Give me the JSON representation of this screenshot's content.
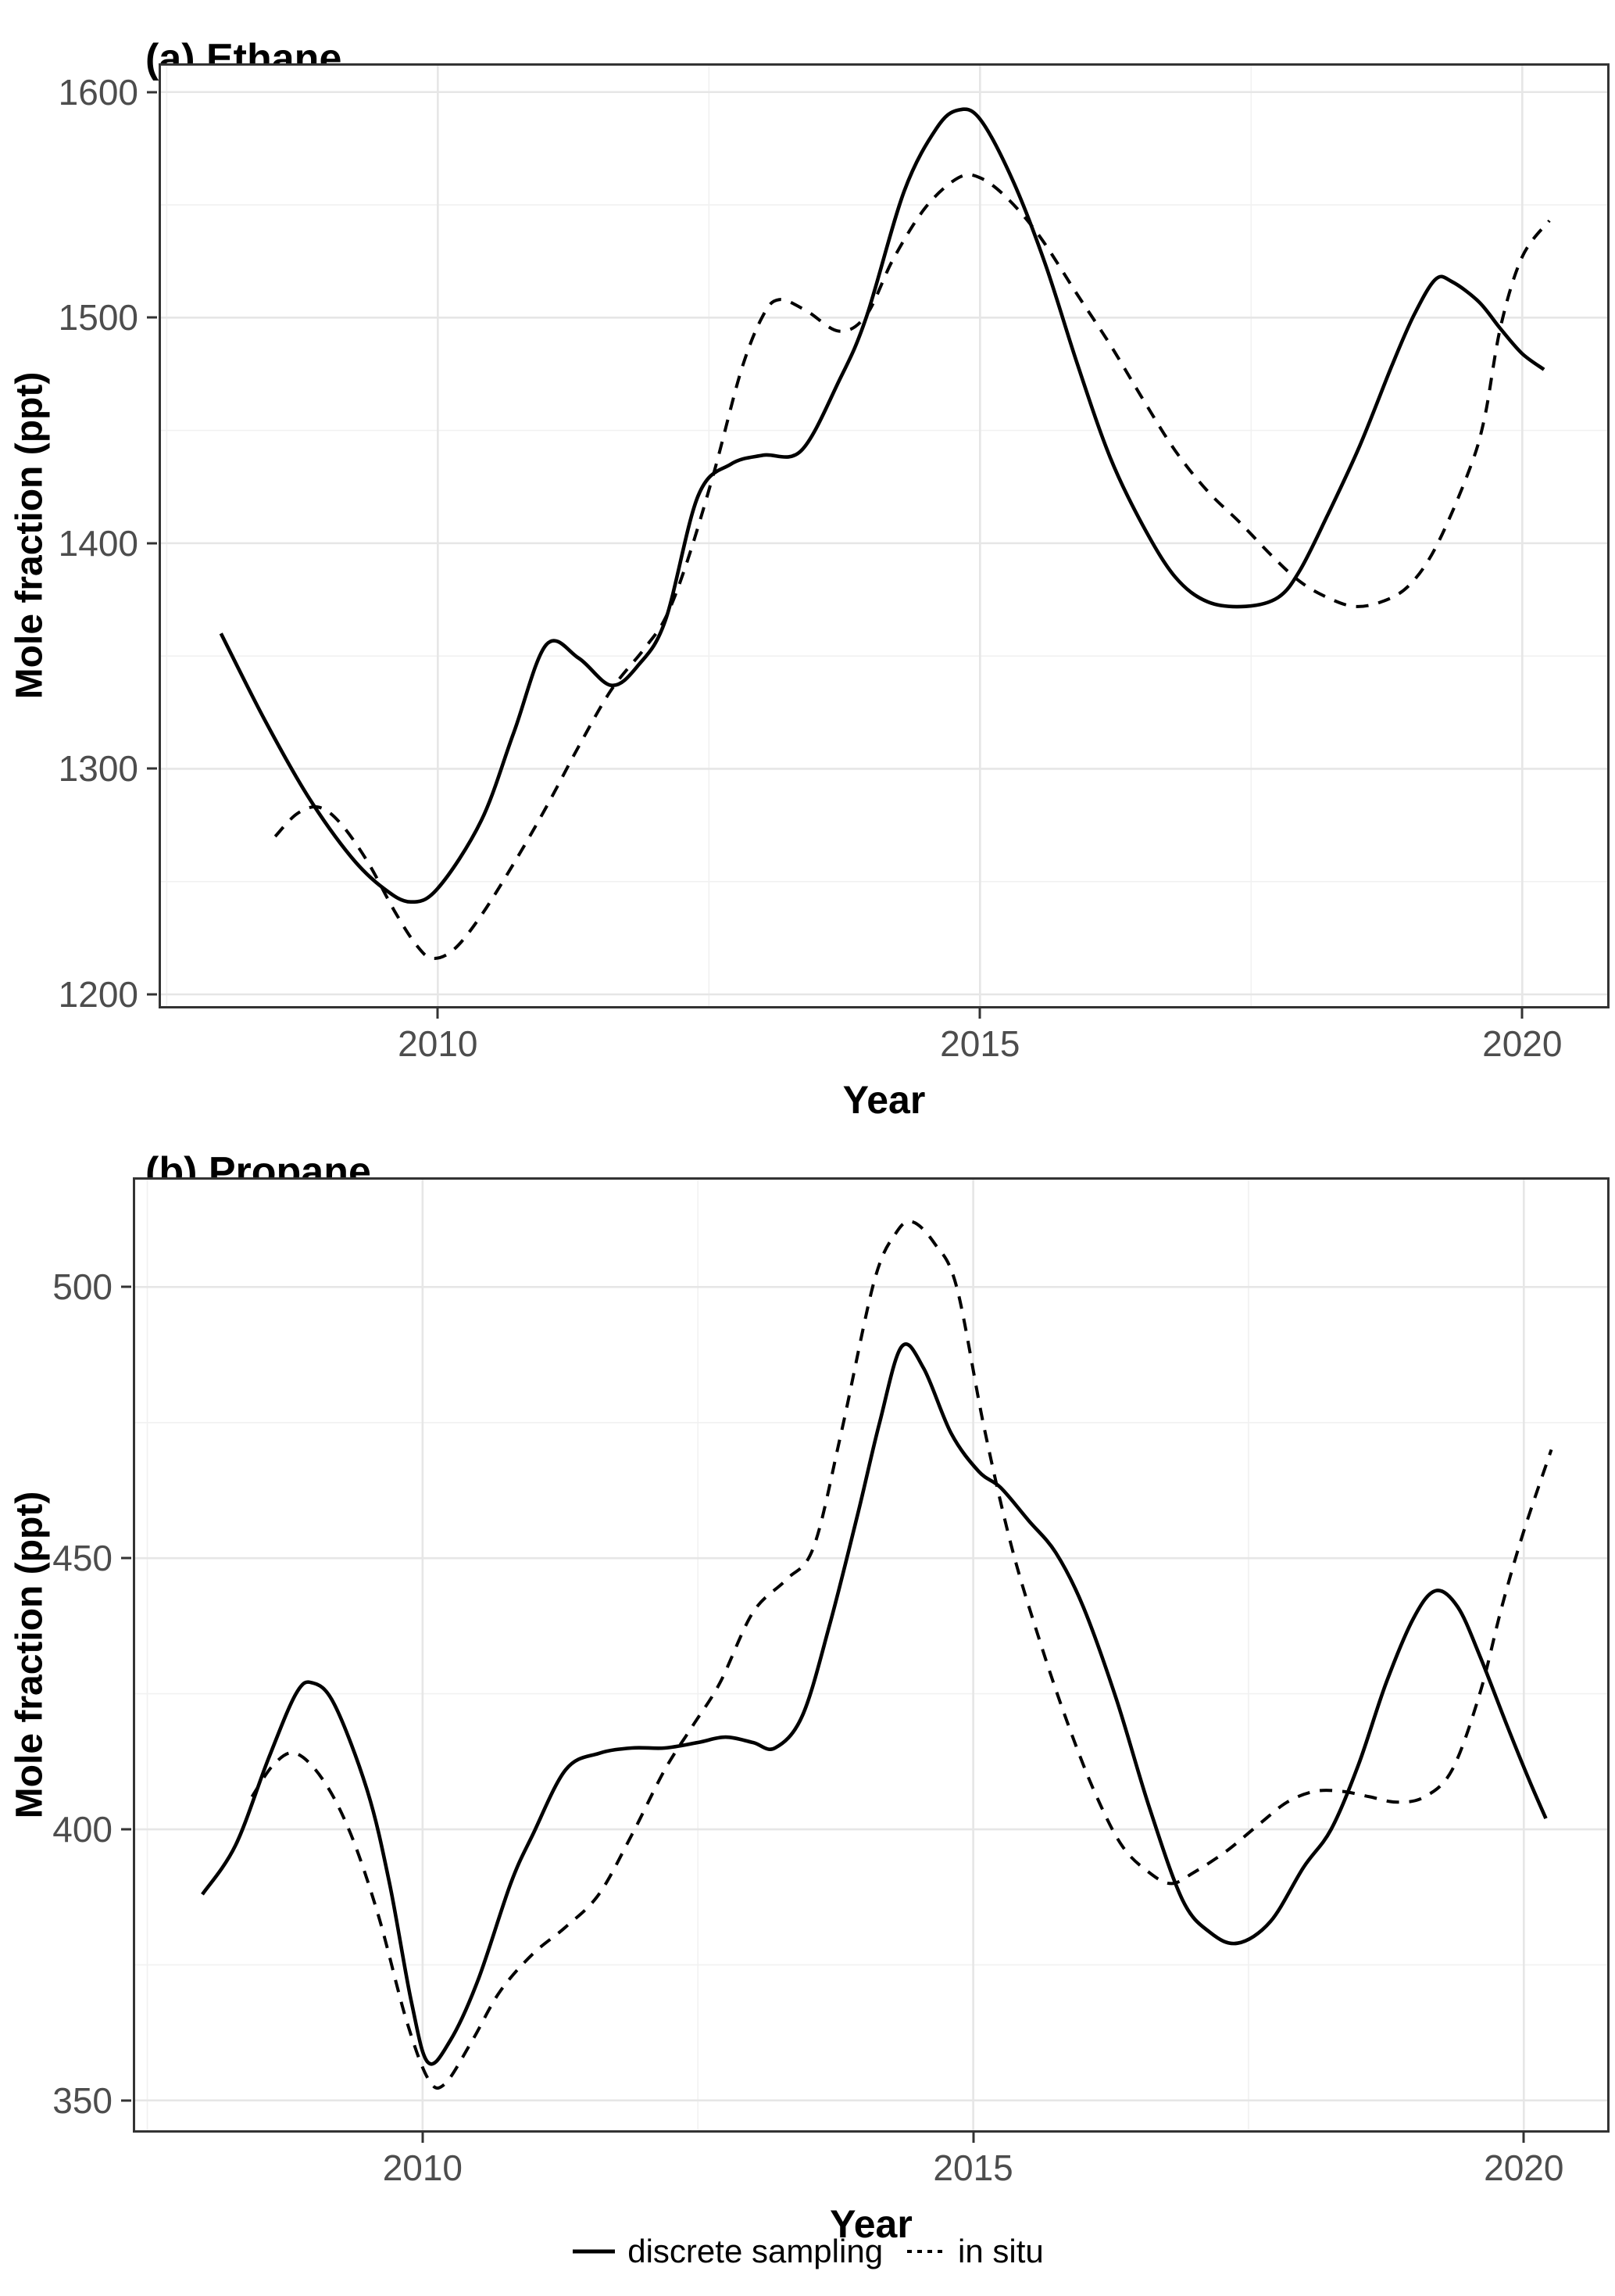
{
  "figure": {
    "x_axis_title": "Year",
    "y_axis_title": "Mole fraction (ppt)"
  },
  "legend": {
    "items": [
      {
        "label": "discrete sampling",
        "line_style": "solid"
      },
      {
        "label": "in situ",
        "line_style": "dashed"
      }
    ]
  },
  "colors": {
    "line": "#000000",
    "axis_text": "#4d4d4d",
    "title_text": "#000000",
    "panel_border": "#333333",
    "grid_major": "#e6e6e6",
    "grid_minor": "#f1f1f1"
  },
  "chart_data": [
    {
      "type": "line",
      "title": "(a) Ethane",
      "xlabel": "Year",
      "ylabel": "Mole fraction (ppt)",
      "x_domain": [
        2007.447,
        2020.783
      ],
      "y_domain": [
        1194.8,
        1611.7
      ],
      "x_ticks": [
        2010,
        2015,
        2020
      ],
      "x_minor": [
        2007.5,
        2012.5,
        2017.5
      ],
      "y_ticks": [
        1200,
        1300,
        1400,
        1500,
        1600
      ],
      "y_minor": [
        1250,
        1350,
        1450,
        1550
      ],
      "grid": true,
      "legend_position": "bottom",
      "series": [
        {
          "name": "discrete sampling",
          "dashed": false,
          "points": [
            [
              2008.0,
              1360
            ],
            [
              2008.4,
              1322
            ],
            [
              2008.8,
              1288
            ],
            [
              2009.2,
              1261
            ],
            [
              2009.5,
              1247
            ],
            [
              2009.75,
              1241
            ],
            [
              2010.0,
              1247
            ],
            [
              2010.4,
              1277
            ],
            [
              2010.7,
              1316
            ],
            [
              2011.0,
              1355
            ],
            [
              2011.3,
              1349
            ],
            [
              2011.6,
              1337
            ],
            [
              2011.85,
              1346
            ],
            [
              2012.1,
              1366
            ],
            [
              2012.4,
              1421
            ],
            [
              2012.7,
              1435
            ],
            [
              2013.0,
              1439
            ],
            [
              2013.35,
              1441
            ],
            [
              2013.7,
              1472
            ],
            [
              2013.95,
              1500
            ],
            [
              2014.3,
              1556
            ],
            [
              2014.6,
              1584
            ],
            [
              2014.8,
              1592
            ],
            [
              2015.0,
              1588
            ],
            [
              2015.3,
              1561
            ],
            [
              2015.6,
              1524
            ],
            [
              2015.9,
              1479
            ],
            [
              2016.2,
              1438
            ],
            [
              2016.5,
              1408
            ],
            [
              2016.8,
              1385
            ],
            [
              2017.1,
              1374
            ],
            [
              2017.45,
              1372
            ],
            [
              2017.75,
              1376
            ],
            [
              2017.95,
              1388
            ],
            [
              2018.2,
              1412
            ],
            [
              2018.5,
              1443
            ],
            [
              2018.8,
              1479
            ],
            [
              2019.0,
              1501
            ],
            [
              2019.2,
              1517
            ],
            [
              2019.35,
              1516
            ],
            [
              2019.6,
              1507
            ],
            [
              2019.8,
              1495
            ],
            [
              2020.0,
              1484
            ],
            [
              2020.2,
              1477
            ]
          ]
        },
        {
          "name": "in situ",
          "dashed": true,
          "points": [
            [
              2008.5,
              1270
            ],
            [
              2008.7,
              1280
            ],
            [
              2008.9,
              1283
            ],
            [
              2009.1,
              1276
            ],
            [
              2009.35,
              1259
            ],
            [
              2009.6,
              1237
            ],
            [
              2009.8,
              1222
            ],
            [
              2009.95,
              1216
            ],
            [
              2010.15,
              1220
            ],
            [
              2010.4,
              1235
            ],
            [
              2010.7,
              1258
            ],
            [
              2011.0,
              1283
            ],
            [
              2011.3,
              1310
            ],
            [
              2011.6,
              1335
            ],
            [
              2011.9,
              1353
            ],
            [
              2012.1,
              1367
            ],
            [
              2012.3,
              1392
            ],
            [
              2012.55,
              1432
            ],
            [
              2012.8,
              1477
            ],
            [
              2013.0,
              1501
            ],
            [
              2013.15,
              1508
            ],
            [
              2013.4,
              1503
            ],
            [
              2013.7,
              1494
            ],
            [
              2013.95,
              1501
            ],
            [
              2014.2,
              1526
            ],
            [
              2014.5,
              1549
            ],
            [
              2014.8,
              1562
            ],
            [
              2015.0,
              1562
            ],
            [
              2015.25,
              1553
            ],
            [
              2015.55,
              1536
            ],
            [
              2015.9,
              1510
            ],
            [
              2016.2,
              1488
            ],
            [
              2016.5,
              1464
            ],
            [
              2016.8,
              1441
            ],
            [
              2017.1,
              1423
            ],
            [
              2017.4,
              1409
            ],
            [
              2017.7,
              1394
            ],
            [
              2017.95,
              1383
            ],
            [
              2018.2,
              1376
            ],
            [
              2018.45,
              1372
            ],
            [
              2018.7,
              1374
            ],
            [
              2018.95,
              1381
            ],
            [
              2019.2,
              1398
            ],
            [
              2019.5,
              1431
            ],
            [
              2019.65,
              1455
            ],
            [
              2019.8,
              1496
            ],
            [
              2020.0,
              1527
            ],
            [
              2020.25,
              1543
            ]
          ]
        }
      ]
    },
    {
      "type": "line",
      "title": "(b) Propane",
      "xlabel": "Year",
      "ylabel": "Mole fraction (ppt)",
      "x_domain": [
        2007.39,
        2020.757
      ],
      "y_domain": [
        344.5,
        519.8
      ],
      "x_ticks": [
        2010,
        2015,
        2020
      ],
      "x_minor": [
        2007.5,
        2012.5,
        2017.5
      ],
      "y_ticks": [
        350,
        400,
        450,
        500
      ],
      "y_minor": [
        375,
        425,
        475
      ],
      "grid": true,
      "legend_position": "bottom",
      "series": [
        {
          "name": "discrete sampling",
          "dashed": false,
          "points": [
            [
              2008.0,
              388
            ],
            [
              2008.3,
              397
            ],
            [
              2008.6,
              413
            ],
            [
              2008.85,
              425
            ],
            [
              2009.0,
              427
            ],
            [
              2009.2,
              423
            ],
            [
              2009.5,
              407
            ],
            [
              2009.7,
              390
            ],
            [
              2009.9,
              368
            ],
            [
              2010.05,
              357
            ],
            [
              2010.25,
              361
            ],
            [
              2010.5,
              372
            ],
            [
              2010.8,
              390
            ],
            [
              2011.0,
              399
            ],
            [
              2011.3,
              411
            ],
            [
              2011.6,
              414
            ],
            [
              2011.9,
              415
            ],
            [
              2012.2,
              415
            ],
            [
              2012.5,
              416
            ],
            [
              2012.75,
              417
            ],
            [
              2013.0,
              416
            ],
            [
              2013.2,
              415
            ],
            [
              2013.45,
              421
            ],
            [
              2013.7,
              438
            ],
            [
              2013.95,
              458
            ],
            [
              2014.15,
              475
            ],
            [
              2014.35,
              489
            ],
            [
              2014.55,
              485
            ],
            [
              2014.8,
              473
            ],
            [
              2015.05,
              466
            ],
            [
              2015.25,
              463
            ],
            [
              2015.5,
              457
            ],
            [
              2015.75,
              451
            ],
            [
              2016.0,
              441
            ],
            [
              2016.3,
              424
            ],
            [
              2016.6,
              404
            ],
            [
              2016.9,
              387
            ],
            [
              2017.15,
              381
            ],
            [
              2017.4,
              379
            ],
            [
              2017.7,
              383
            ],
            [
              2018.0,
              393
            ],
            [
              2018.25,
              400
            ],
            [
              2018.5,
              412
            ],
            [
              2018.75,
              427
            ],
            [
              2019.0,
              439
            ],
            [
              2019.2,
              444
            ],
            [
              2019.4,
              441
            ],
            [
              2019.6,
              432
            ],
            [
              2019.85,
              419
            ],
            [
              2020.05,
              409
            ],
            [
              2020.2,
              402
            ]
          ]
        },
        {
          "name": "in situ",
          "dashed": true,
          "points": [
            [
              2008.45,
              406
            ],
            [
              2008.65,
              412
            ],
            [
              2008.85,
              414
            ],
            [
              2009.1,
              409
            ],
            [
              2009.35,
              399
            ],
            [
              2009.6,
              384
            ],
            [
              2009.85,
              365
            ],
            [
              2010.05,
              354
            ],
            [
              2010.2,
              353
            ],
            [
              2010.45,
              361
            ],
            [
              2010.7,
              370
            ],
            [
              2011.0,
              377
            ],
            [
              2011.3,
              382
            ],
            [
              2011.6,
              388
            ],
            [
              2011.9,
              399
            ],
            [
              2012.2,
              411
            ],
            [
              2012.45,
              419
            ],
            [
              2012.7,
              427
            ],
            [
              2013.0,
              440
            ],
            [
              2013.3,
              446
            ],
            [
              2013.55,
              452
            ],
            [
              2013.8,
              473
            ],
            [
              2014.1,
              501
            ],
            [
              2014.3,
              510
            ],
            [
              2014.45,
              512
            ],
            [
              2014.65,
              508
            ],
            [
              2014.85,
              500
            ],
            [
              2015.1,
              474
            ],
            [
              2015.35,
              452
            ],
            [
              2015.6,
              435
            ],
            [
              2015.85,
              420
            ],
            [
              2016.1,
              407
            ],
            [
              2016.35,
              397
            ],
            [
              2016.6,
              392
            ],
            [
              2016.8,
              390
            ],
            [
              2017.0,
              392
            ],
            [
              2017.3,
              396
            ],
            [
              2017.6,
              401
            ],
            [
              2017.85,
              405
            ],
            [
              2018.1,
              407
            ],
            [
              2018.35,
              407
            ],
            [
              2018.6,
              406
            ],
            [
              2018.85,
              405
            ],
            [
              2019.1,
              406
            ],
            [
              2019.35,
              411
            ],
            [
              2019.6,
              425
            ],
            [
              2019.8,
              441
            ],
            [
              2020.0,
              455
            ],
            [
              2020.25,
              470
            ]
          ]
        }
      ]
    }
  ]
}
